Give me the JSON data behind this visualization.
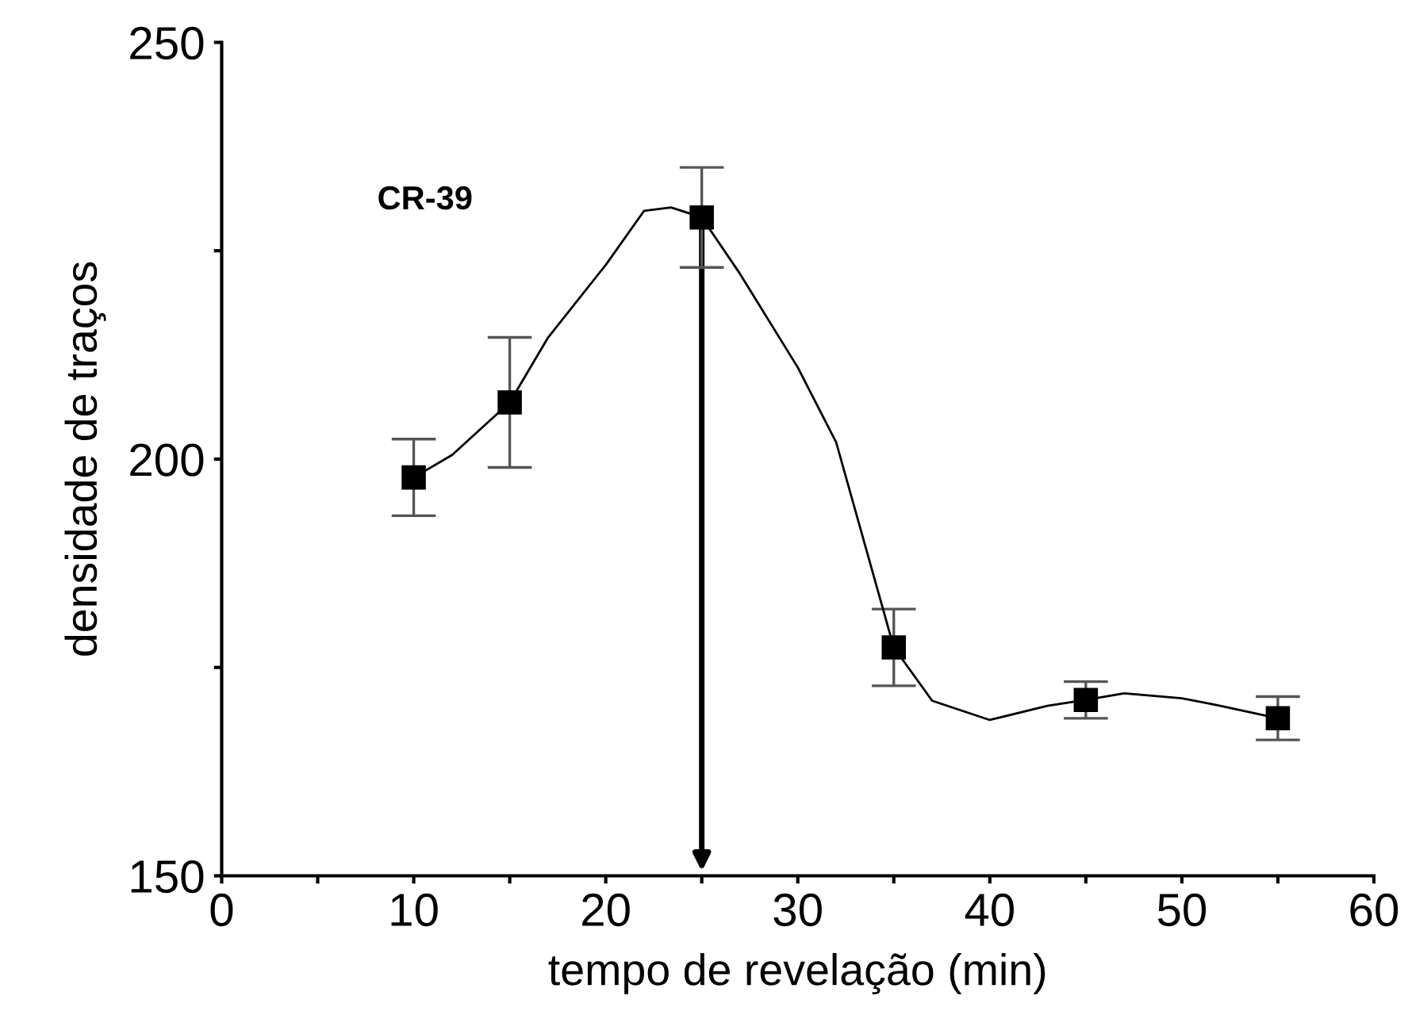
{
  "chart_data": {
    "type": "scatter",
    "xlabel": "tempo de revelação (min)",
    "ylabel": "densidade de traços",
    "annotations": [
      "CR-39"
    ],
    "xlim": [
      0,
      60
    ],
    "ylim": [
      150,
      250
    ],
    "xticks": [
      0,
      {
        "value": 5,
        "label": null
      },
      10,
      {
        "value": 15,
        "label": null
      },
      20,
      {
        "value": 25,
        "label": null
      },
      30,
      {
        "value": 35,
        "label": null
      },
      40,
      {
        "value": 45,
        "label": null
      },
      50,
      {
        "value": 55,
        "label": null
      },
      60
    ],
    "yticks": [
      150,
      {
        "value": 175,
        "label": null
      },
      200,
      {
        "value": 225,
        "label": null
      },
      250
    ],
    "grid": false,
    "legend": false,
    "marker": "square",
    "series": [
      {
        "color": "#000000",
        "x": [
          10,
          15,
          25,
          35,
          45,
          55
        ],
        "values": [
          197.8,
          206.8,
          229.0,
          177.4,
          171.1,
          168.9
        ],
        "errors": [
          4.6,
          7.8,
          6.0,
          4.6,
          2.2,
          2.6
        ]
      },
      {
        "type": "line",
        "color": "#000000",
        "marker": "none",
        "line_style": "solid",
        "x": [
          10,
          12,
          15,
          17,
          20,
          22,
          23.4,
          25,
          27,
          30,
          32,
          35,
          37,
          40,
          43,
          45,
          47,
          50,
          52,
          55
        ],
        "values": [
          197.8,
          200.5,
          206.8,
          214.6,
          223.3,
          229.8,
          230.2,
          229.0,
          222.2,
          211,
          202,
          177.4,
          171,
          168.7,
          170.4,
          171.1,
          171.9,
          171.3,
          170.4,
          168.9
        ]
      }
    ]
  }
}
